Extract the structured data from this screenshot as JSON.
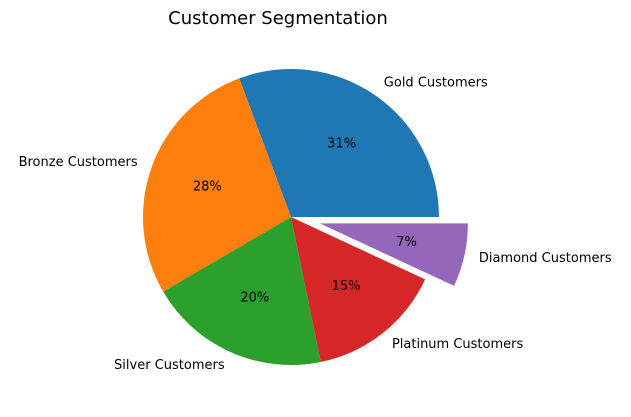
{
  "chart_data": {
    "type": "pie",
    "title": "Customer Segmentation",
    "categories": [
      "Gold Customers",
      "Bronze Customers",
      "Silver Customers",
      "Platinum Customers",
      "Diamond Customers"
    ],
    "values": [
      31,
      28,
      20,
      15,
      7
    ],
    "value_labels": [
      "31%",
      "28%",
      "20%",
      "15%",
      "7%"
    ],
    "colors": [
      "#1f77b4",
      "#ff7f0e",
      "#2ca02c",
      "#d62728",
      "#9467bd"
    ],
    "exploded": [
      false,
      false,
      false,
      false,
      true
    ],
    "start_angle_deg": 0,
    "direction": "counterclockwise",
    "legend": "none"
  }
}
